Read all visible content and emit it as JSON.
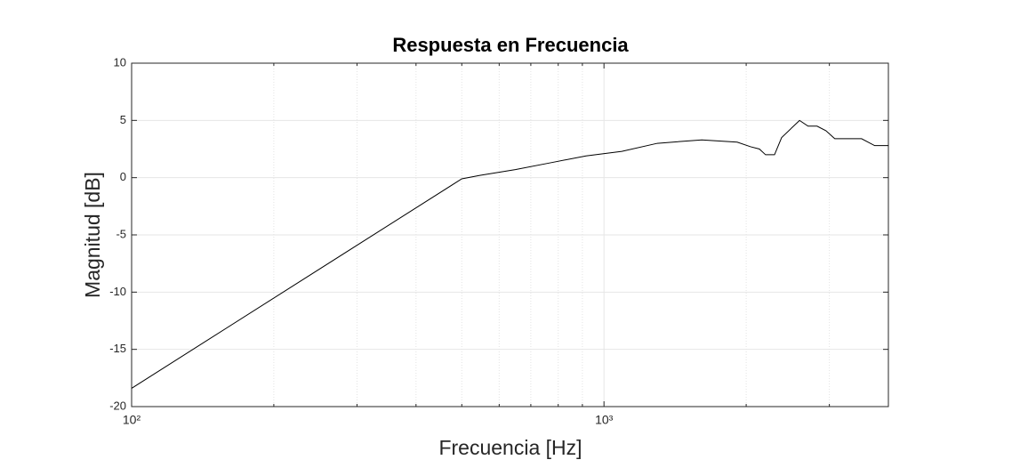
{
  "chart_data": {
    "type": "line",
    "title": "Respuesta en Frecuencia",
    "x_label": "Frecuencia [Hz]",
    "y_label": "Magnitud [dB]",
    "x_scale": "log",
    "grid": true,
    "minor_grid": true,
    "xlim": [
      100,
      4000
    ],
    "ylim": [
      -20,
      10
    ],
    "xticks": [
      {
        "value": 100,
        "label": "10²"
      },
      {
        "value": 1000,
        "label": "10³"
      }
    ],
    "yticks": [
      -20,
      -15,
      -10,
      -5,
      0,
      5,
      10
    ],
    "x": [
      100,
      500,
      546,
      649,
      771,
      916,
      1091,
      1297,
      1611,
      1914,
      2044,
      2133,
      2198,
      2296,
      2377,
      2594,
      2704,
      2825,
      2950,
      3080,
      3221,
      3510,
      3741,
      4000
    ],
    "series": [
      {
        "name": "Magnitud",
        "color": "#000000",
        "values": [
          -18.4,
          -0.1,
          0.2,
          0.7,
          1.3,
          1.9,
          2.3,
          3.0,
          3.3,
          3.1,
          2.7,
          2.5,
          2.0,
          2.0,
          3.5,
          5.0,
          4.5,
          4.5,
          4.1,
          3.4,
          3.4,
          3.4,
          2.8,
          2.8
        ]
      }
    ]
  }
}
